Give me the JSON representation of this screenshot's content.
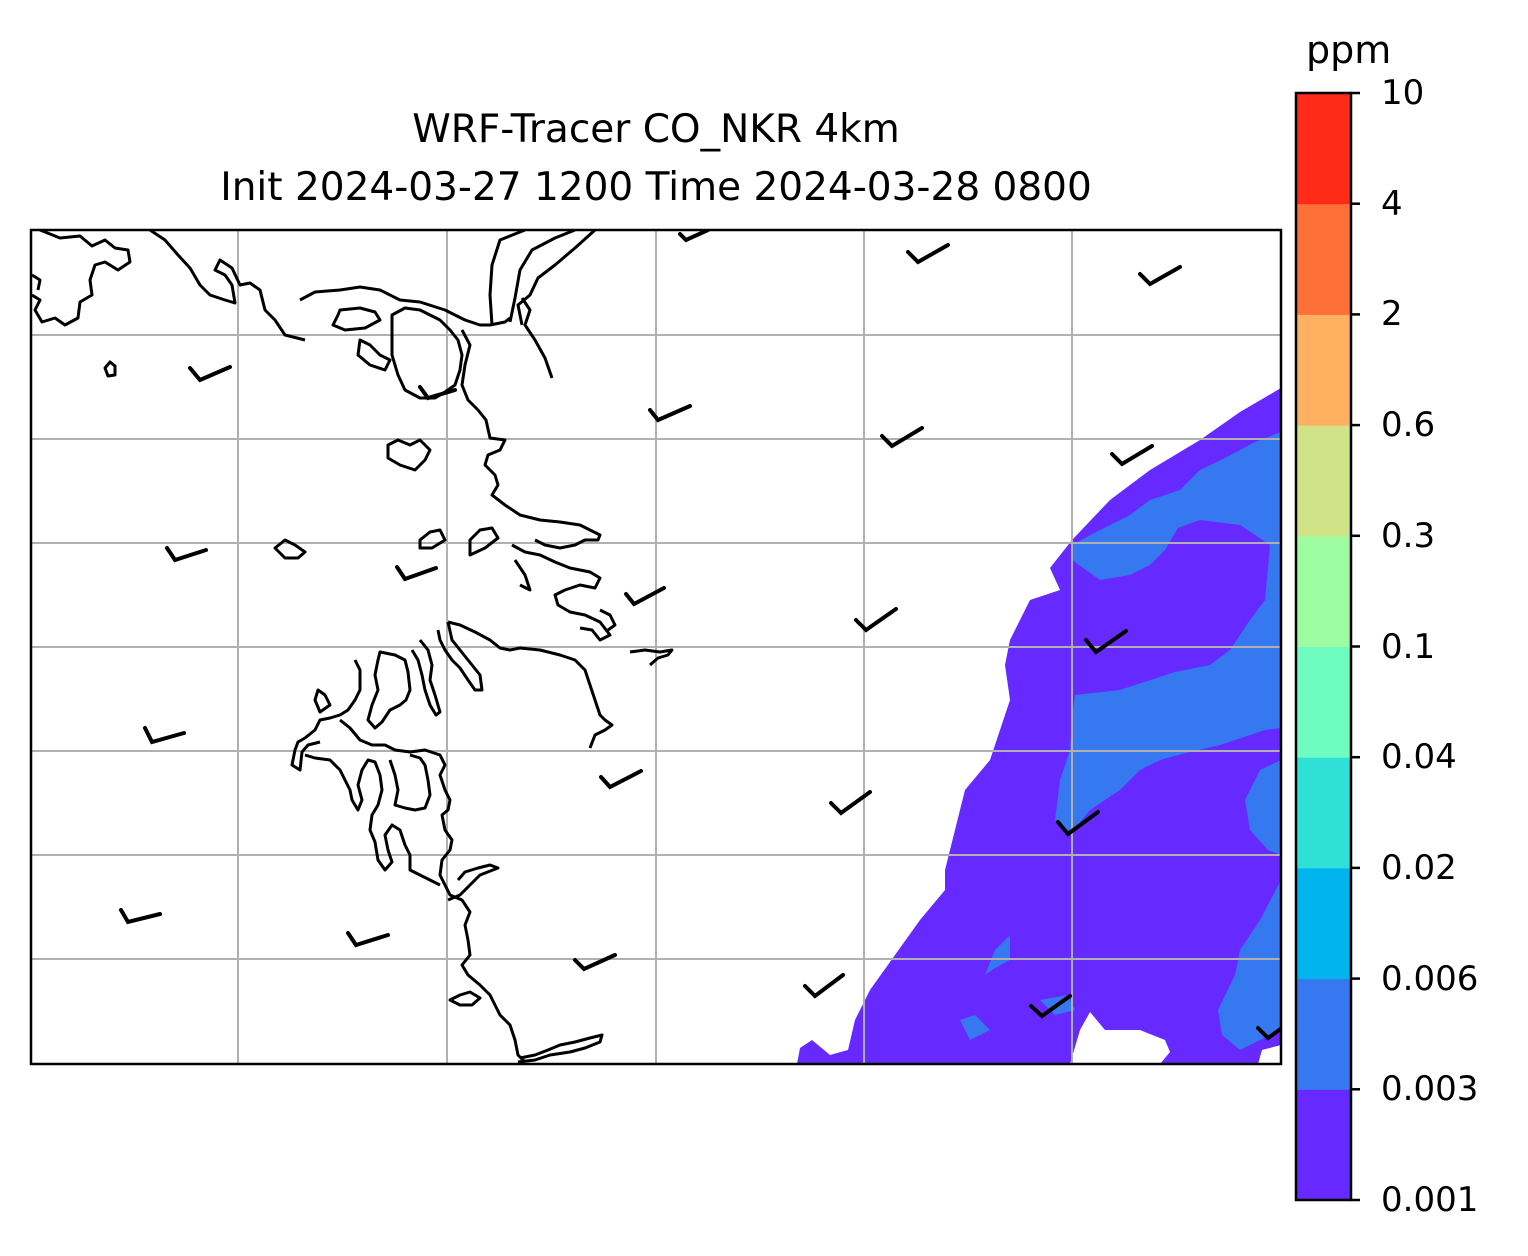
{
  "title": {
    "line1": "WRF-Tracer CO_NKR 4km",
    "line2": "Init 2024-03-27 1200 Time 2024-03-28 0800"
  },
  "colorbar": {
    "units": "ppm",
    "levels": [
      "0.001",
      "0.003",
      "0.006",
      "0.02",
      "0.04",
      "0.1",
      "0.3",
      "0.6",
      "2",
      "4",
      "10"
    ],
    "colors": [
      "#6629ff",
      "#3578ef",
      "#00b4ee",
      "#2ee0d6",
      "#6efcc0",
      "#9efca0",
      "#d0e387",
      "#ffb060",
      "#ff7038",
      "#ff2a18"
    ]
  },
  "map": {
    "field": "CO_NKR tracer concentration",
    "shaded_levels_present": [
      "0.001-0.003",
      "0.003-0.006"
    ],
    "gridlines": true,
    "wind_barbs": true,
    "coastlines": true
  }
}
